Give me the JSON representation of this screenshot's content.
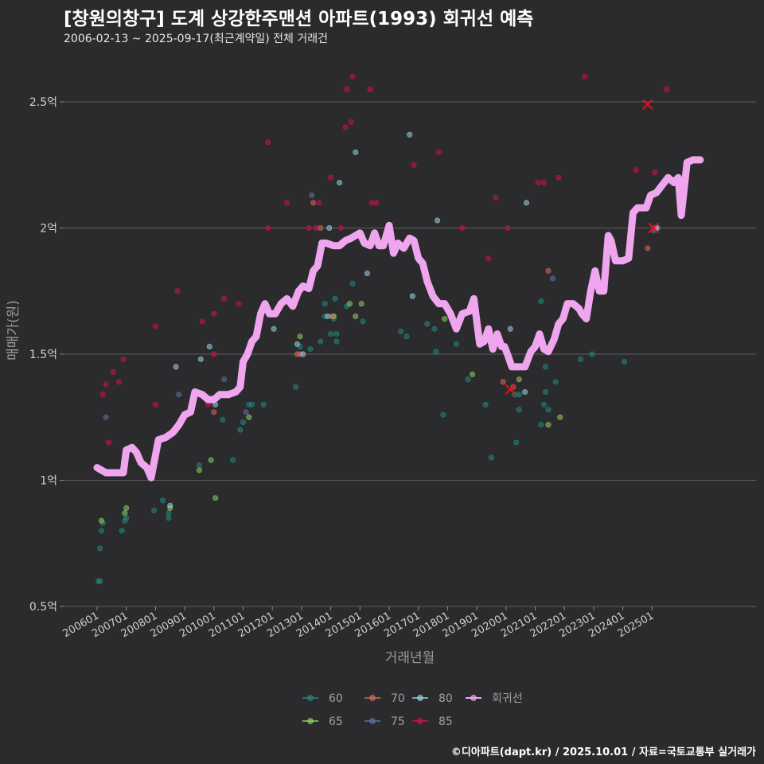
{
  "title": "[창원의창구] 도계 상강한주맨션 아파트(1993) 회귀선 예측",
  "subtitle": "2006-02-13 ~ 2025-09-17(최근계약일) 전체 거래건",
  "caption": "©디아파트(dapt.kr) / 2025.10.01 / 자료=국토교통부 실거래가",
  "chart_data": {
    "type": "scatter",
    "xlabel": "거래년월",
    "ylabel": "매매가(원)",
    "ylim": [
      0.5,
      2.6
    ],
    "yticks": [
      {
        "value": 0.5,
        "label": "0.5억"
      },
      {
        "value": 1.0,
        "label": "1억"
      },
      {
        "value": 1.5,
        "label": "1.5억"
      },
      {
        "value": 2.0,
        "label": "2억"
      },
      {
        "value": 2.5,
        "label": "2.5억"
      }
    ],
    "xlim": [
      2005.5,
      2027.0
    ],
    "xticks": [
      {
        "value": 2006.0,
        "label": "200601"
      },
      {
        "value": 2007.0,
        "label": "200701"
      },
      {
        "value": 2008.0,
        "label": "200801"
      },
      {
        "value": 2009.0,
        "label": "200901"
      },
      {
        "value": 2010.0,
        "label": "201001"
      },
      {
        "value": 2011.0,
        "label": "201101"
      },
      {
        "value": 2012.0,
        "label": "201201"
      },
      {
        "value": 2013.0,
        "label": "201301"
      },
      {
        "value": 2014.0,
        "label": "201401"
      },
      {
        "value": 2015.0,
        "label": "201501"
      },
      {
        "value": 2016.0,
        "label": "201601"
      },
      {
        "value": 2017.0,
        "label": "201701"
      },
      {
        "value": 2018.0,
        "label": "201801"
      },
      {
        "value": 2019.0,
        "label": "201901"
      },
      {
        "value": 2020.0,
        "label": "202001"
      },
      {
        "value": 2021.0,
        "label": "202101"
      },
      {
        "value": 2022.0,
        "label": "202201"
      },
      {
        "value": 2023.0,
        "label": "202301"
      },
      {
        "value": 2024.0,
        "label": "202401"
      },
      {
        "value": 2025.0,
        "label": "202501"
      }
    ],
    "grid": true,
    "legend_position": "bottom",
    "series": [
      {
        "name": "60",
        "color": "#1f8a80",
        "points": [
          [
            2006.05,
            0.6
          ],
          [
            2006.1,
            0.6
          ],
          [
            2006.1,
            0.73
          ],
          [
            2006.15,
            0.8
          ],
          [
            2006.2,
            0.83
          ],
          [
            2006.85,
            0.8
          ],
          [
            2006.95,
            0.84
          ],
          [
            2007.0,
            0.85
          ],
          [
            2007.95,
            0.88
          ],
          [
            2008.25,
            0.92
          ],
          [
            2008.45,
            0.85
          ],
          [
            2008.45,
            0.87
          ],
          [
            2009.5,
            1.06
          ],
          [
            2010.3,
            1.24
          ],
          [
            2010.65,
            1.08
          ],
          [
            2010.9,
            1.2
          ],
          [
            2011.0,
            1.23
          ],
          [
            2011.2,
            1.3
          ],
          [
            2011.3,
            1.3
          ],
          [
            2011.7,
            1.3
          ],
          [
            2012.8,
            1.37
          ],
          [
            2012.95,
            1.53
          ],
          [
            2013.3,
            1.52
          ],
          [
            2013.65,
            1.55
          ],
          [
            2013.8,
            1.65
          ],
          [
            2013.8,
            1.7
          ],
          [
            2014.0,
            1.58
          ],
          [
            2014.1,
            1.65
          ],
          [
            2014.1,
            1.64
          ],
          [
            2014.2,
            1.55
          ],
          [
            2014.2,
            1.58
          ],
          [
            2014.15,
            1.72
          ],
          [
            2014.55,
            1.69
          ],
          [
            2014.75,
            1.78
          ],
          [
            2015.1,
            1.63
          ],
          [
            2016.4,
            1.59
          ],
          [
            2016.6,
            1.57
          ],
          [
            2017.3,
            1.62
          ],
          [
            2017.55,
            1.6
          ],
          [
            2017.6,
            1.51
          ],
          [
            2017.85,
            1.26
          ],
          [
            2018.3,
            1.54
          ],
          [
            2018.7,
            1.4
          ],
          [
            2019.3,
            1.3
          ],
          [
            2019.5,
            1.09
          ],
          [
            2020.35,
            1.15
          ],
          [
            2020.3,
            1.34
          ],
          [
            2020.45,
            1.34
          ],
          [
            2020.45,
            1.28
          ],
          [
            2021.2,
            1.71
          ],
          [
            2021.2,
            1.22
          ],
          [
            2021.3,
            1.3
          ],
          [
            2021.35,
            1.35
          ],
          [
            2021.35,
            1.45
          ],
          [
            2021.45,
            1.28
          ],
          [
            2021.7,
            1.39
          ],
          [
            2022.55,
            1.48
          ],
          [
            2022.95,
            1.5
          ],
          [
            2024.05,
            1.47
          ]
        ]
      },
      {
        "name": "65",
        "color": "#8ed060",
        "points": [
          [
            2006.15,
            0.84
          ],
          [
            2006.95,
            0.87
          ],
          [
            2007.0,
            0.89
          ],
          [
            2008.5,
            0.89
          ],
          [
            2009.5,
            1.04
          ],
          [
            2009.9,
            1.08
          ],
          [
            2010.05,
            0.93
          ],
          [
            2011.2,
            1.25
          ],
          [
            2012.95,
            1.57
          ],
          [
            2014.1,
            1.65
          ],
          [
            2014.65,
            1.7
          ],
          [
            2014.85,
            1.65
          ],
          [
            2015.05,
            1.7
          ],
          [
            2017.9,
            1.64
          ],
          [
            2018.85,
            1.42
          ],
          [
            2020.45,
            1.4
          ],
          [
            2021.45,
            1.22
          ],
          [
            2021.85,
            1.25
          ]
        ]
      },
      {
        "name": "70",
        "color": "#d46a5a",
        "points": [
          [
            2010.0,
            1.27
          ],
          [
            2012.85,
            1.5
          ],
          [
            2012.95,
            1.5
          ],
          [
            2013.4,
            2.1
          ],
          [
            2013.65,
            2.0
          ],
          [
            2014.05,
            1.65
          ],
          [
            2019.9,
            1.39
          ],
          [
            2020.25,
            1.37
          ],
          [
            2021.45,
            1.83
          ],
          [
            2024.85,
            1.92
          ],
          [
            2025.1,
            2.0
          ]
        ]
      },
      {
        "name": "75",
        "color": "#5f6fa8",
        "points": [
          [
            2006.3,
            1.25
          ],
          [
            2008.8,
            1.34
          ],
          [
            2010.35,
            1.4
          ],
          [
            2011.1,
            1.27
          ],
          [
            2013.35,
            2.13
          ],
          [
            2021.6,
            1.8
          ],
          [
            2025.05,
            1.99
          ],
          [
            2025.2,
            2.0
          ]
        ]
      },
      {
        "name": "80",
        "color": "#9bd2e0",
        "points": [
          [
            2008.5,
            0.9
          ],
          [
            2008.7,
            1.45
          ],
          [
            2009.55,
            1.48
          ],
          [
            2009.85,
            1.53
          ],
          [
            2010.05,
            1.3
          ],
          [
            2012.05,
            1.6
          ],
          [
            2012.85,
            1.54
          ],
          [
            2013.05,
            1.5
          ],
          [
            2013.95,
            2.0
          ],
          [
            2013.9,
            1.65
          ],
          [
            2014.3,
            2.18
          ],
          [
            2014.85,
            2.3
          ],
          [
            2015.25,
            1.82
          ],
          [
            2016.7,
            2.37
          ],
          [
            2016.8,
            1.73
          ],
          [
            2017.65,
            2.03
          ],
          [
            2020.15,
            1.6
          ],
          [
            2020.65,
            1.35
          ],
          [
            2020.7,
            2.1
          ],
          [
            2025.15,
            2.0
          ]
        ]
      },
      {
        "name": "85",
        "color": "#d0104c",
        "points": [
          [
            2006.2,
            1.34
          ],
          [
            2006.3,
            1.38
          ],
          [
            2006.4,
            1.15
          ],
          [
            2006.55,
            1.43
          ],
          [
            2006.75,
            1.39
          ],
          [
            2006.9,
            1.48
          ],
          [
            2008.0,
            1.3
          ],
          [
            2008.0,
            1.61
          ],
          [
            2008.75,
            1.75
          ],
          [
            2009.6,
            1.63
          ],
          [
            2009.8,
            1.3
          ],
          [
            2010.0,
            1.66
          ],
          [
            2010.0,
            1.5
          ],
          [
            2010.35,
            1.72
          ],
          [
            2010.85,
            1.7
          ],
          [
            2011.85,
            2.0
          ],
          [
            2011.85,
            2.34
          ],
          [
            2012.5,
            2.1
          ],
          [
            2013.25,
            2.0
          ],
          [
            2013.5,
            2.0
          ],
          [
            2013.6,
            2.1
          ],
          [
            2014.0,
            2.2
          ],
          [
            2014.35,
            2.0
          ],
          [
            2014.5,
            2.4
          ],
          [
            2014.55,
            2.55
          ],
          [
            2014.7,
            2.42
          ],
          [
            2014.75,
            2.6
          ],
          [
            2015.35,
            2.55
          ],
          [
            2015.4,
            2.1
          ],
          [
            2015.55,
            2.1
          ],
          [
            2016.85,
            2.25
          ],
          [
            2017.7,
            2.3
          ],
          [
            2018.5,
            2.0
          ],
          [
            2019.65,
            2.12
          ],
          [
            2020.05,
            2.0
          ],
          [
            2019.4,
            1.88
          ],
          [
            2021.1,
            2.18
          ],
          [
            2021.3,
            2.18
          ],
          [
            2021.8,
            2.2
          ],
          [
            2022.7,
            2.6
          ],
          [
            2024.45,
            2.23
          ],
          [
            2025.1,
            2.22
          ],
          [
            2025.5,
            2.55
          ]
        ]
      }
    ],
    "regression": {
      "name": "회귀선",
      "color": "#f0a6ee",
      "points": [
        [
          2006.0,
          1.05
        ],
        [
          2006.15,
          1.04
        ],
        [
          2006.3,
          1.03
        ],
        [
          2006.5,
          1.03
        ],
        [
          2006.9,
          1.03
        ],
        [
          2007.0,
          1.12
        ],
        [
          2007.2,
          1.13
        ],
        [
          2007.35,
          1.11
        ],
        [
          2007.5,
          1.07
        ],
        [
          2007.7,
          1.05
        ],
        [
          2007.85,
          1.01
        ],
        [
          2008.0,
          1.1
        ],
        [
          2008.1,
          1.16
        ],
        [
          2008.35,
          1.17
        ],
        [
          2008.6,
          1.19
        ],
        [
          2008.8,
          1.22
        ],
        [
          2009.0,
          1.26
        ],
        [
          2009.2,
          1.27
        ],
        [
          2009.35,
          1.35
        ],
        [
          2009.6,
          1.34
        ],
        [
          2009.8,
          1.32
        ],
        [
          2010.0,
          1.32
        ],
        [
          2010.2,
          1.34
        ],
        [
          2010.5,
          1.34
        ],
        [
          2010.75,
          1.35
        ],
        [
          2010.9,
          1.37
        ],
        [
          2011.0,
          1.47
        ],
        [
          2011.15,
          1.5
        ],
        [
          2011.3,
          1.55
        ],
        [
          2011.45,
          1.57
        ],
        [
          2011.6,
          1.66
        ],
        [
          2011.75,
          1.7
        ],
        [
          2011.9,
          1.66
        ],
        [
          2012.1,
          1.66
        ],
        [
          2012.3,
          1.7
        ],
        [
          2012.5,
          1.72
        ],
        [
          2012.7,
          1.69
        ],
        [
          2012.9,
          1.75
        ],
        [
          2013.05,
          1.77
        ],
        [
          2013.25,
          1.76
        ],
        [
          2013.4,
          1.83
        ],
        [
          2013.55,
          1.85
        ],
        [
          2013.7,
          1.94
        ],
        [
          2013.85,
          1.94
        ],
        [
          2014.1,
          1.93
        ],
        [
          2014.3,
          1.93
        ],
        [
          2014.5,
          1.95
        ],
        [
          2014.7,
          1.96
        ],
        [
          2014.85,
          1.97
        ],
        [
          2015.0,
          1.98
        ],
        [
          2015.15,
          1.94
        ],
        [
          2015.35,
          1.93
        ],
        [
          2015.5,
          1.98
        ],
        [
          2015.65,
          1.93
        ],
        [
          2015.8,
          1.93
        ],
        [
          2016.0,
          2.01
        ],
        [
          2016.15,
          1.9
        ],
        [
          2016.3,
          1.94
        ],
        [
          2016.5,
          1.92
        ],
        [
          2016.7,
          1.96
        ],
        [
          2016.85,
          1.95
        ],
        [
          2017.0,
          1.88
        ],
        [
          2017.15,
          1.86
        ],
        [
          2017.3,
          1.79
        ],
        [
          2017.5,
          1.73
        ],
        [
          2017.7,
          1.7
        ],
        [
          2017.9,
          1.7
        ],
        [
          2018.1,
          1.66
        ],
        [
          2018.3,
          1.6
        ],
        [
          2018.5,
          1.66
        ],
        [
          2018.75,
          1.67
        ],
        [
          2018.9,
          1.72
        ],
        [
          2019.0,
          1.63
        ],
        [
          2019.1,
          1.54
        ],
        [
          2019.25,
          1.55
        ],
        [
          2019.4,
          1.6
        ],
        [
          2019.55,
          1.52
        ],
        [
          2019.7,
          1.58
        ],
        [
          2019.85,
          1.53
        ],
        [
          2019.95,
          1.53
        ],
        [
          2020.05,
          1.5
        ],
        [
          2020.2,
          1.45
        ],
        [
          2020.45,
          1.45
        ],
        [
          2020.65,
          1.45
        ],
        [
          2020.85,
          1.51
        ],
        [
          2021.0,
          1.53
        ],
        [
          2021.15,
          1.58
        ],
        [
          2021.3,
          1.52
        ],
        [
          2021.45,
          1.51
        ],
        [
          2021.65,
          1.56
        ],
        [
          2021.8,
          1.62
        ],
        [
          2021.95,
          1.64
        ],
        [
          2022.1,
          1.7
        ],
        [
          2022.3,
          1.7
        ],
        [
          2022.5,
          1.68
        ],
        [
          2022.6,
          1.66
        ],
        [
          2022.75,
          1.64
        ],
        [
          2022.9,
          1.75
        ],
        [
          2023.05,
          1.83
        ],
        [
          2023.2,
          1.75
        ],
        [
          2023.35,
          1.75
        ],
        [
          2023.5,
          1.97
        ],
        [
          2023.6,
          1.95
        ],
        [
          2023.75,
          1.87
        ],
        [
          2024.0,
          1.87
        ],
        [
          2024.2,
          1.88
        ],
        [
          2024.35,
          2.06
        ],
        [
          2024.5,
          2.08
        ],
        [
          2024.8,
          2.08
        ],
        [
          2024.95,
          2.13
        ],
        [
          2025.15,
          2.14
        ],
        [
          2025.35,
          2.17
        ],
        [
          2025.55,
          2.2
        ],
        [
          2025.75,
          2.18
        ],
        [
          2025.9,
          2.2
        ],
        [
          2026.0,
          2.05
        ],
        [
          2026.2,
          2.26
        ],
        [
          2026.4,
          2.27
        ],
        [
          2026.65,
          2.27
        ]
      ]
    },
    "markers_x": {
      "color": "#e8101a",
      "points": [
        [
          2020.15,
          1.36
        ],
        [
          2024.85,
          2.49
        ],
        [
          2025.05,
          2.0
        ]
      ]
    }
  }
}
